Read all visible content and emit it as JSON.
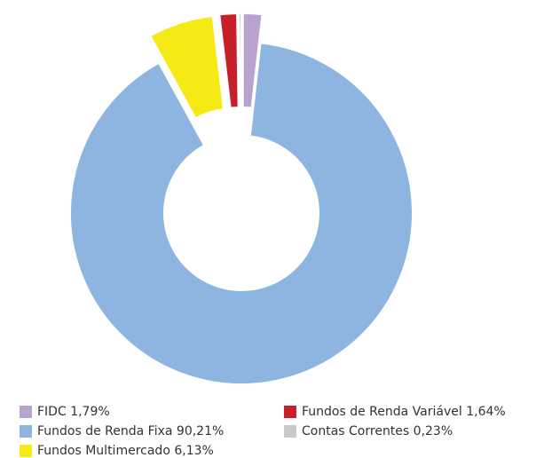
{
  "chart_data": {
    "type": "pie",
    "categories": [
      "FIDC",
      "Fundos de Renda Fixa",
      "Fundos Multimercado",
      "Fundos de Renda Variável",
      "Contas Correntes"
    ],
    "values": [
      1.79,
      90.21,
      6.13,
      1.64,
      0.23
    ],
    "value_labels": [
      "1,79%",
      "90,21%",
      "6,13%",
      "1,64%",
      "0,23%"
    ],
    "colors": [
      "#b7a3cd",
      "#8eb4e0",
      "#f6ea16",
      "#c8202a",
      "#c9c9c9"
    ],
    "legend": "bottom"
  }
}
